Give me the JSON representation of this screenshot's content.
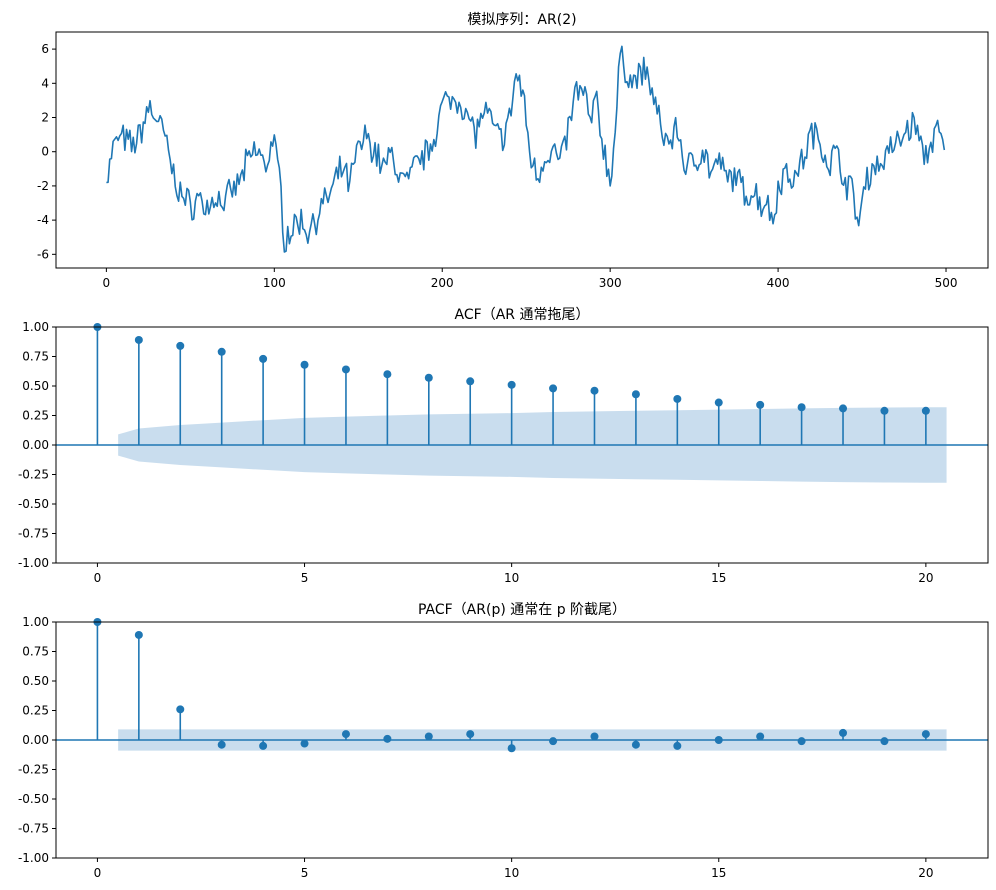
{
  "chart_data": [
    {
      "type": "line",
      "title": "模拟序列：AR(2)",
      "xlabel": "",
      "ylabel": "",
      "xlim": [
        -30,
        525
      ],
      "ylim": [
        -6.8,
        7.0
      ],
      "x_ticks": [
        0,
        100,
        200,
        300,
        400,
        500
      ],
      "y_ticks": [
        -6,
        -4,
        -2,
        0,
        2,
        4,
        6
      ],
      "line_color": "#1f77b4",
      "grid": false,
      "n_points": 500,
      "shape_anchors": [
        [
          0,
          -1.8
        ],
        [
          4,
          0.2
        ],
        [
          8,
          0.9
        ],
        [
          15,
          0.3
        ],
        [
          20,
          1.0
        ],
        [
          25,
          2.6
        ],
        [
          30,
          2.0
        ],
        [
          35,
          0.8
        ],
        [
          40,
          -1.4
        ],
        [
          45,
          -2.6
        ],
        [
          50,
          -3.2
        ],
        [
          55,
          -2.7
        ],
        [
          60,
          -3.3
        ],
        [
          65,
          -2.6
        ],
        [
          70,
          -3.0
        ],
        [
          75,
          -2.4
        ],
        [
          80,
          -1.6
        ],
        [
          85,
          -0.4
        ],
        [
          90,
          0.1
        ],
        [
          95,
          -0.9
        ],
        [
          99,
          0.8
        ],
        [
          103,
          -1.4
        ],
        [
          106,
          -5.0
        ],
        [
          110,
          -4.6
        ],
        [
          115,
          -4.0
        ],
        [
          120,
          -4.6
        ],
        [
          125,
          -3.8
        ],
        [
          130,
          -3.0
        ],
        [
          135,
          -2.2
        ],
        [
          140,
          -1.0
        ],
        [
          145,
          -1.9
        ],
        [
          150,
          0.2
        ],
        [
          155,
          0.9
        ],
        [
          160,
          0.0
        ],
        [
          165,
          -0.9
        ],
        [
          170,
          -0.2
        ],
        [
          175,
          -1.5
        ],
        [
          180,
          -1.8
        ],
        [
          185,
          -0.6
        ],
        [
          190,
          -0.2
        ],
        [
          195,
          0.9
        ],
        [
          200,
          2.7
        ],
        [
          205,
          3.0
        ],
        [
          210,
          3.2
        ],
        [
          215,
          2.0
        ],
        [
          220,
          1.1
        ],
        [
          225,
          2.4
        ],
        [
          230,
          1.5
        ],
        [
          235,
          0.7
        ],
        [
          240,
          1.8
        ],
        [
          244,
          4.6
        ],
        [
          248,
          3.4
        ],
        [
          252,
          0.1
        ],
        [
          256,
          -1.4
        ],
        [
          260,
          -0.6
        ],
        [
          265,
          0.3
        ],
        [
          270,
          -0.7
        ],
        [
          275,
          1.2
        ],
        [
          280,
          3.7
        ],
        [
          285,
          3.2
        ],
        [
          288,
          1.8
        ],
        [
          292,
          2.9
        ],
        [
          296,
          0.2
        ],
        [
          300,
          -1.6
        ],
        [
          303,
          1.1
        ],
        [
          306,
          5.6
        ],
        [
          310,
          4.6
        ],
        [
          315,
          4.1
        ],
        [
          320,
          4.8
        ],
        [
          325,
          3.6
        ],
        [
          330,
          1.3
        ],
        [
          335,
          0.5
        ],
        [
          340,
          1.4
        ],
        [
          345,
          -1.0
        ],
        [
          350,
          -0.6
        ],
        [
          355,
          0.2
        ],
        [
          360,
          -1.2
        ],
        [
          365,
          -0.7
        ],
        [
          370,
          -1.7
        ],
        [
          375,
          -1.3
        ],
        [
          380,
          -2.6
        ],
        [
          385,
          -2.2
        ],
        [
          390,
          -3.0
        ],
        [
          393,
          -2.9
        ],
        [
          397,
          -4.0
        ],
        [
          400,
          -2.0
        ],
        [
          405,
          -1.1
        ],
        [
          410,
          -1.6
        ],
        [
          415,
          -0.4
        ],
        [
          420,
          1.1
        ],
        [
          425,
          0.6
        ],
        [
          430,
          -0.6
        ],
        [
          435,
          -0.1
        ],
        [
          440,
          -1.6
        ],
        [
          445,
          -2.6
        ],
        [
          448,
          -4.4
        ],
        [
          452,
          -1.6
        ],
        [
          457,
          -0.9
        ],
        [
          462,
          -0.6
        ],
        [
          467,
          0.2
        ],
        [
          472,
          0.5
        ],
        [
          477,
          1.4
        ],
        [
          482,
          1.6
        ],
        [
          487,
          -0.4
        ],
        [
          490,
          0.1
        ],
        [
          493,
          1.2
        ],
        [
          496,
          0.9
        ],
        [
          499,
          0.1
        ]
      ]
    },
    {
      "type": "stem",
      "title": "ACF（AR 通常拖尾）",
      "xlabel": "",
      "ylabel": "",
      "xlim": [
        -1.0,
        21.5
      ],
      "ylim": [
        -1.0,
        1.0
      ],
      "x_ticks": [
        0,
        5,
        10,
        15,
        20
      ],
      "y_ticks": [
        -1.0,
        -0.75,
        -0.5,
        -0.25,
        0.0,
        0.25,
        0.5,
        0.75,
        1.0
      ],
      "lags": [
        0,
        1,
        2,
        3,
        4,
        5,
        6,
        7,
        8,
        9,
        10,
        11,
        12,
        13,
        14,
        15,
        16,
        17,
        18,
        19,
        20
      ],
      "values": [
        1.0,
        0.89,
        0.84,
        0.79,
        0.73,
        0.68,
        0.64,
        0.6,
        0.57,
        0.54,
        0.51,
        0.48,
        0.46,
        0.43,
        0.39,
        0.36,
        0.34,
        0.32,
        0.31,
        0.29,
        0.29
      ],
      "confidence_band_upper": [
        0.09,
        0.14,
        0.17,
        0.19,
        0.21,
        0.23,
        0.24,
        0.25,
        0.26,
        0.265,
        0.27,
        0.28,
        0.285,
        0.29,
        0.295,
        0.3,
        0.305,
        0.31,
        0.315,
        0.318,
        0.32
      ],
      "stem_color": "#1f77b4",
      "band_color": "#c6dbed",
      "grid": false
    },
    {
      "type": "stem",
      "title": "PACF（AR(p) 通常在 p 阶截尾）",
      "xlabel": "",
      "ylabel": "",
      "xlim": [
        -1.0,
        21.5
      ],
      "ylim": [
        -1.0,
        1.0
      ],
      "x_ticks": [
        0,
        5,
        10,
        15,
        20
      ],
      "y_ticks": [
        -1.0,
        -0.75,
        -0.5,
        -0.25,
        0.0,
        0.25,
        0.5,
        0.75,
        1.0
      ],
      "lags": [
        0,
        1,
        2,
        3,
        4,
        5,
        6,
        7,
        8,
        9,
        10,
        11,
        12,
        13,
        14,
        15,
        16,
        17,
        18,
        19,
        20
      ],
      "values": [
        1.0,
        0.89,
        0.26,
        -0.04,
        -0.05,
        -0.03,
        0.05,
        0.01,
        0.03,
        0.05,
        -0.07,
        -0.01,
        0.03,
        -0.04,
        -0.05,
        0.0,
        0.03,
        -0.01,
        0.06,
        -0.01,
        0.05
      ],
      "confidence_band_upper": [
        0.09,
        0.09,
        0.09,
        0.09,
        0.09,
        0.09,
        0.09,
        0.09,
        0.09,
        0.09,
        0.09,
        0.09,
        0.09,
        0.09,
        0.09,
        0.09,
        0.09,
        0.09,
        0.09,
        0.09,
        0.09
      ],
      "stem_color": "#1f77b4",
      "band_color": "#c6dbed",
      "grid": false
    }
  ]
}
